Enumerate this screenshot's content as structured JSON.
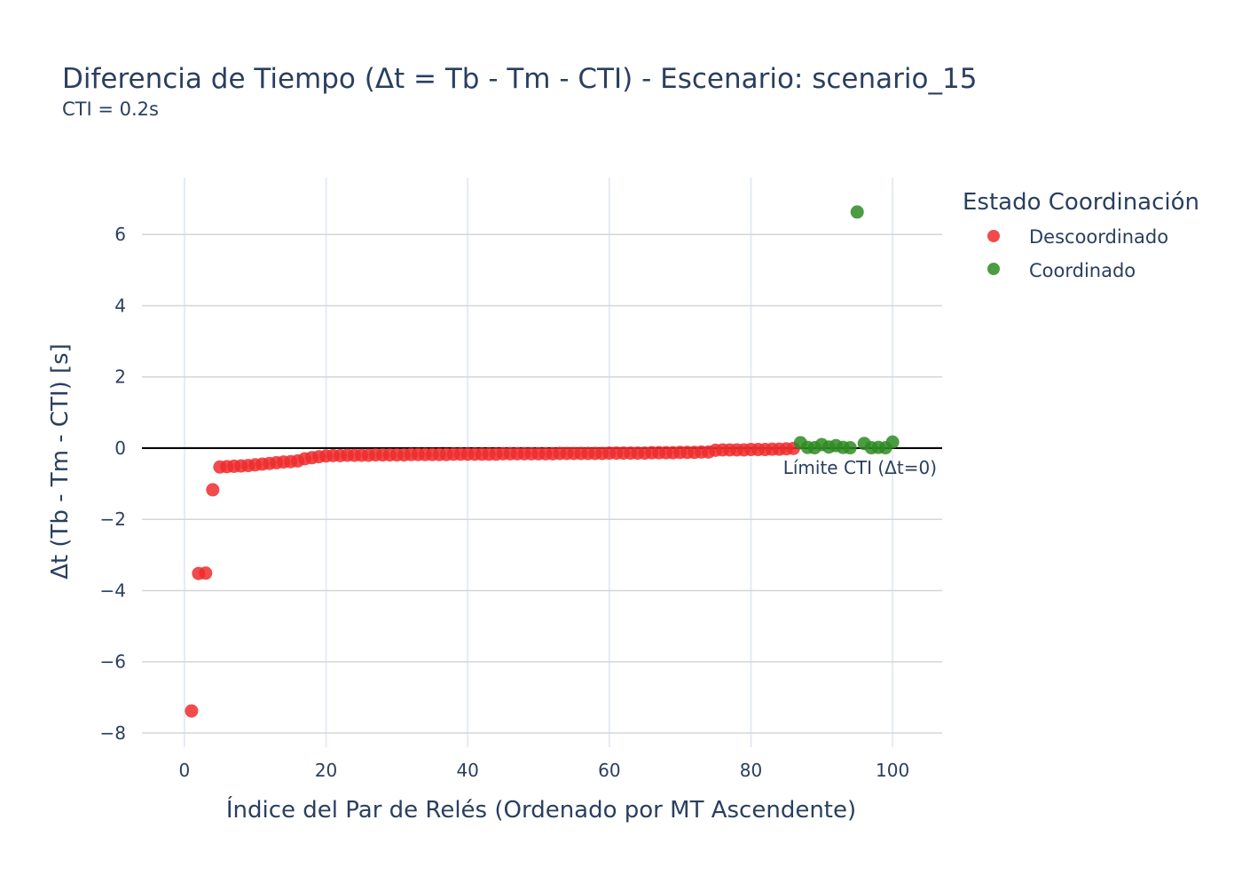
{
  "chart_data": {
    "type": "scatter",
    "title": "Diferencia de Tiempo (Δt = Tb - Tm - CTI) - Escenario: scenario_15",
    "subtitle": "CTI = 0.2s",
    "xlabel": "Índice del Par de Relés (Ordenado por MT Ascendente)",
    "ylabel": "Δt (Tb - Tm - CTI) [s]",
    "xlim": [
      -6,
      107
    ],
    "ylim": [
      -8.4,
      7.6
    ],
    "x_ticks": [
      0,
      20,
      40,
      60,
      80,
      100
    ],
    "x_tick_labels": [
      "0",
      "20",
      "40",
      "60",
      "80",
      "100"
    ],
    "y_ticks": [
      6,
      4,
      2,
      0,
      -2,
      -4,
      -6,
      -8
    ],
    "y_tick_labels": [
      "6",
      "4",
      "2",
      "0",
      "−2",
      "−4",
      "−6",
      "−8"
    ],
    "grid": true,
    "legend": {
      "title": "Estado Coordinación",
      "placement": "top-right-outside"
    },
    "reference_line": {
      "y": 0,
      "label": "Límite CTI (Δt=0)"
    },
    "series": [
      {
        "name": "Descoordinado",
        "color": "#EF2B2D",
        "x": [
          1,
          2,
          3,
          4,
          5,
          6,
          7,
          8,
          9,
          10,
          11,
          12,
          13,
          14,
          15,
          16,
          17,
          18,
          19,
          20,
          21,
          22,
          23,
          24,
          25,
          26,
          27,
          28,
          29,
          30,
          31,
          32,
          33,
          34,
          35,
          36,
          37,
          38,
          39,
          40,
          41,
          42,
          43,
          44,
          45,
          46,
          47,
          48,
          49,
          50,
          51,
          52,
          53,
          54,
          55,
          56,
          57,
          58,
          59,
          60,
          61,
          62,
          63,
          64,
          65,
          66,
          67,
          68,
          69,
          70,
          71,
          72,
          73,
          74,
          75,
          76,
          77,
          78,
          79,
          80,
          81,
          82,
          83,
          84,
          85,
          86
        ],
        "y": [
          -7.38,
          -3.52,
          -3.51,
          -1.17,
          -0.53,
          -0.52,
          -0.51,
          -0.5,
          -0.49,
          -0.47,
          -0.45,
          -0.43,
          -0.41,
          -0.39,
          -0.38,
          -0.36,
          -0.3,
          -0.27,
          -0.24,
          -0.22,
          -0.21,
          -0.21,
          -0.2,
          -0.2,
          -0.2,
          -0.2,
          -0.19,
          -0.19,
          -0.19,
          -0.19,
          -0.19,
          -0.18,
          -0.18,
          -0.18,
          -0.18,
          -0.18,
          -0.18,
          -0.17,
          -0.17,
          -0.17,
          -0.17,
          -0.17,
          -0.17,
          -0.17,
          -0.16,
          -0.16,
          -0.16,
          -0.16,
          -0.16,
          -0.16,
          -0.16,
          -0.16,
          -0.15,
          -0.15,
          -0.15,
          -0.15,
          -0.15,
          -0.15,
          -0.15,
          -0.14,
          -0.14,
          -0.14,
          -0.14,
          -0.14,
          -0.14,
          -0.13,
          -0.13,
          -0.13,
          -0.13,
          -0.12,
          -0.12,
          -0.12,
          -0.11,
          -0.11,
          -0.06,
          -0.05,
          -0.05,
          -0.05,
          -0.05,
          -0.04,
          -0.04,
          -0.04,
          -0.03,
          -0.03,
          -0.02,
          -0.01
        ]
      },
      {
        "name": "Coordinado",
        "color": "#2E8B22",
        "x": [
          87,
          88,
          89,
          90,
          91,
          92,
          93,
          94,
          95,
          96,
          97,
          98,
          99,
          100
        ],
        "y": [
          0.15,
          0.02,
          0.01,
          0.1,
          0.03,
          0.07,
          0.02,
          0.01,
          6.63,
          0.13,
          0.01,
          0.02,
          0.01,
          0.17
        ]
      }
    ]
  }
}
